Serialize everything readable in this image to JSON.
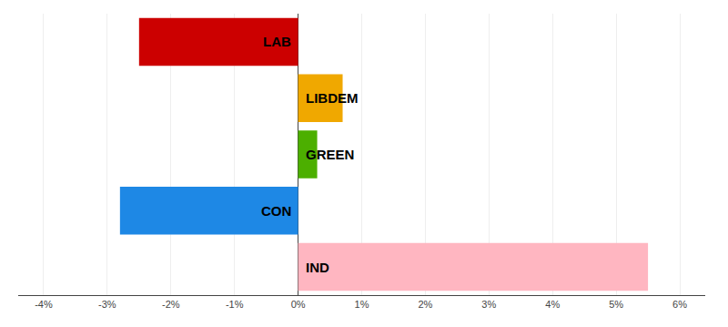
{
  "chart_data": {
    "type": "bar",
    "orientation": "horizontal",
    "categories": [
      "LAB",
      "LIBDEM",
      "GREEN",
      "CON",
      "IND"
    ],
    "values": [
      -2.5,
      0.7,
      0.3,
      -2.8,
      5.5
    ],
    "colors": [
      "#cc0000",
      "#f0a800",
      "#4caf00",
      "#1e88e5",
      "#ffb6c1"
    ],
    "xlim": [
      -4.4,
      6.4
    ],
    "xticks": [
      {
        "value": -4,
        "label": "-4%"
      },
      {
        "value": -3,
        "label": "-3%"
      },
      {
        "value": -2,
        "label": "-2%"
      },
      {
        "value": -1,
        "label": "-1%"
      },
      {
        "value": 0,
        "label": "0%"
      },
      {
        "value": 1,
        "label": "1%"
      },
      {
        "value": 2,
        "label": "2%"
      },
      {
        "value": 3,
        "label": "3%"
      },
      {
        "value": 4,
        "label": "4%"
      },
      {
        "value": 5,
        "label": "5%"
      },
      {
        "value": 6,
        "label": "6%"
      }
    ],
    "grid": true,
    "tick_labels": "x"
  }
}
